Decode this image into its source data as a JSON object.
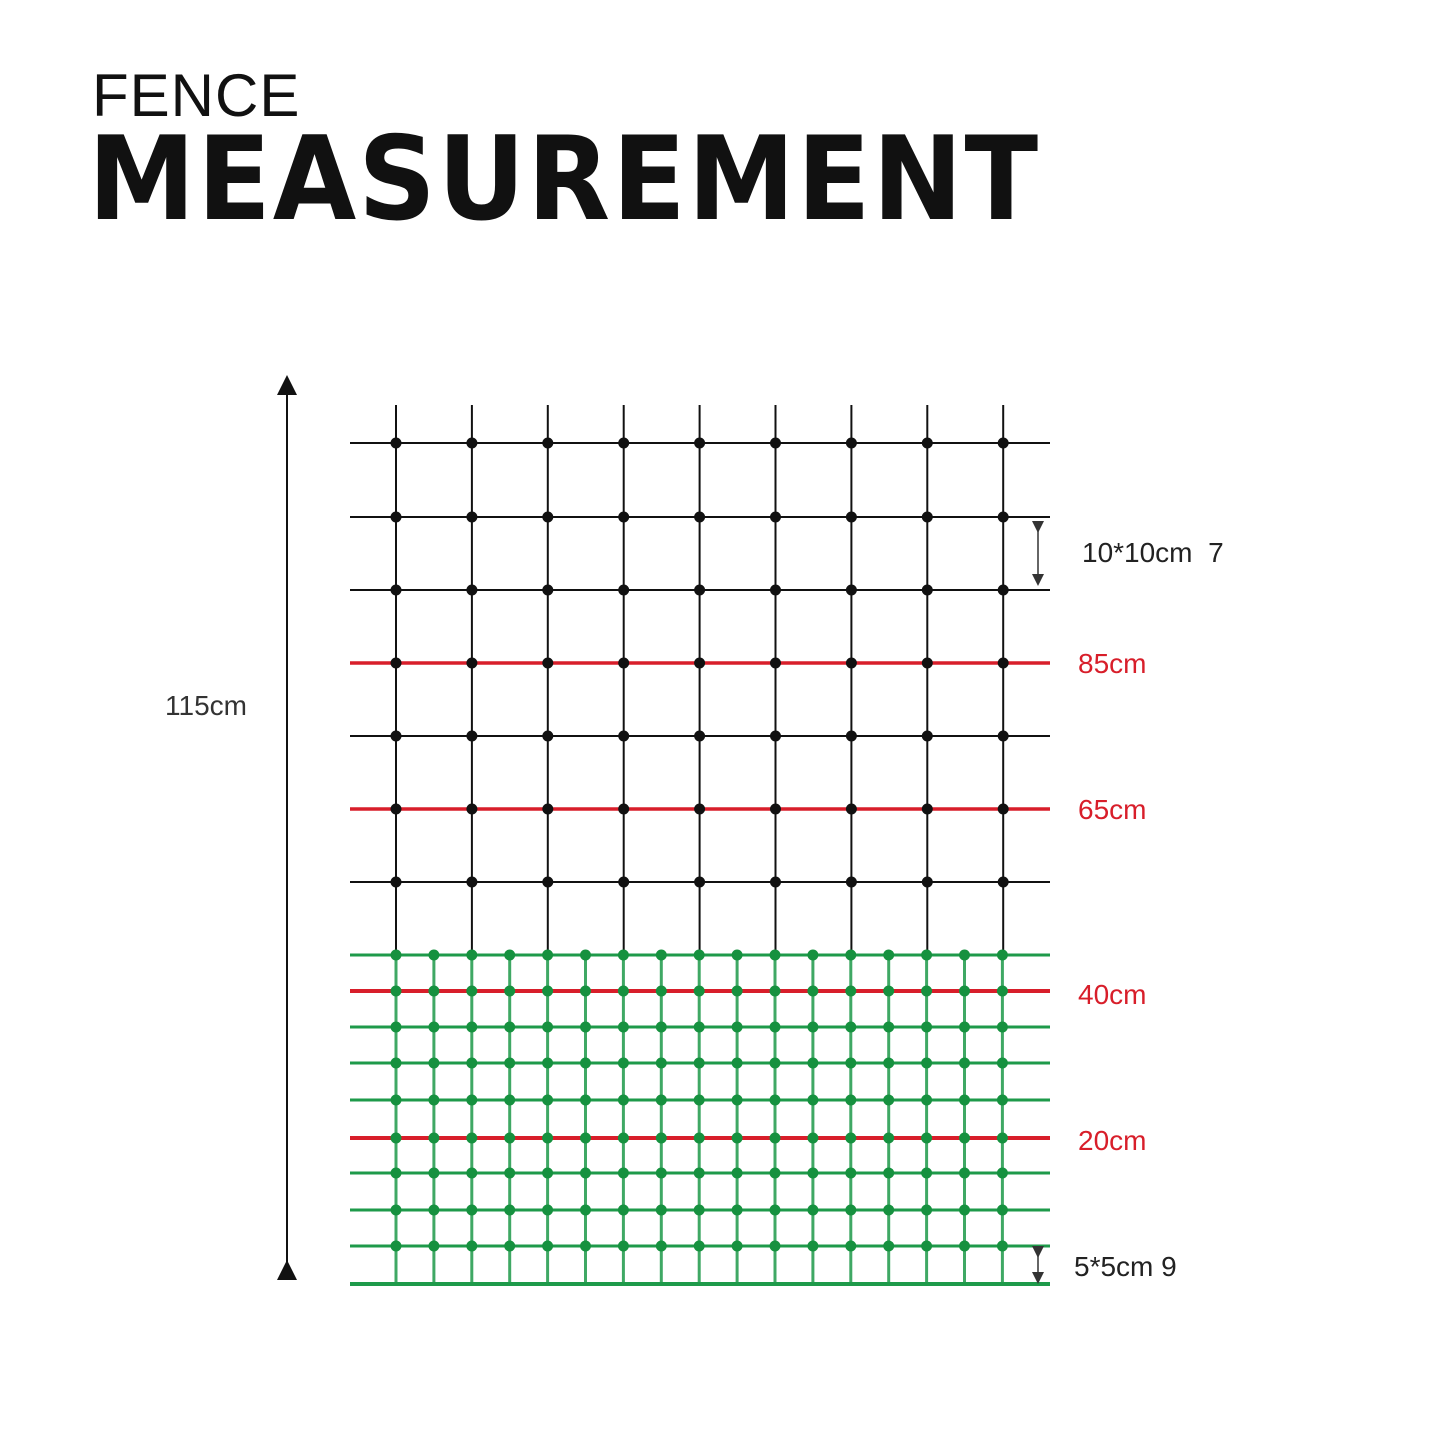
{
  "title": {
    "line1": "FENCE",
    "line2": "MEASUREMENT"
  },
  "total_height_label": "115cm",
  "mesh_labels": {
    "upper": "10*10cm  7",
    "lower": "5*5cm 9"
  },
  "wire_labels": [
    "85cm",
    "65cm",
    "40cm",
    "20cm"
  ],
  "colors": {
    "upper_mesh": "#111111",
    "lower_mesh": "#1e9a4a",
    "live_wire": "#d81e2a",
    "wire_label": "#d81e2a"
  }
}
